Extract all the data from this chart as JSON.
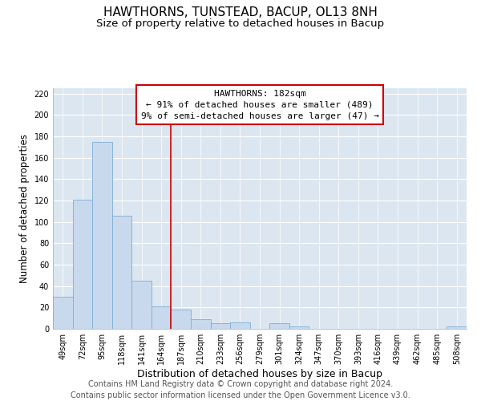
{
  "title": "HAWTHORNS, TUNSTEAD, BACUP, OL13 8NH",
  "subtitle": "Size of property relative to detached houses in Bacup",
  "xlabel": "Distribution of detached houses by size in Bacup",
  "ylabel": "Number of detached properties",
  "bar_labels": [
    "49sqm",
    "72sqm",
    "95sqm",
    "118sqm",
    "141sqm",
    "164sqm",
    "187sqm",
    "210sqm",
    "233sqm",
    "256sqm",
    "279sqm",
    "301sqm",
    "324sqm",
    "347sqm",
    "370sqm",
    "393sqm",
    "416sqm",
    "439sqm",
    "462sqm",
    "485sqm",
    "508sqm"
  ],
  "bar_heights": [
    30,
    121,
    175,
    106,
    45,
    21,
    18,
    9,
    5,
    6,
    0,
    5,
    2,
    0,
    0,
    0,
    0,
    0,
    0,
    0,
    2
  ],
  "bar_color": "#c8d9ee",
  "bar_edge_color": "#7dadd4",
  "vline_color": "#cc0000",
  "annotation_title": "HAWTHORNS: 182sqm",
  "annotation_line1": "← 91% of detached houses are smaller (489)",
  "annotation_line2": "9% of semi-detached houses are larger (47) →",
  "annotation_box_edge": "#cc0000",
  "annotation_box_face": "#ffffff",
  "bg_color": "#dce6f0",
  "ylim": [
    0,
    225
  ],
  "yticks": [
    0,
    20,
    40,
    60,
    80,
    100,
    120,
    140,
    160,
    180,
    200,
    220
  ],
  "footer_line1": "Contains HM Land Registry data © Crown copyright and database right 2024.",
  "footer_line2": "Contains public sector information licensed under the Open Government Licence v3.0.",
  "title_fontsize": 11,
  "subtitle_fontsize": 9.5,
  "xlabel_fontsize": 9,
  "ylabel_fontsize": 8.5,
  "tick_fontsize": 7,
  "footer_fontsize": 7,
  "annotation_fontsize": 8
}
